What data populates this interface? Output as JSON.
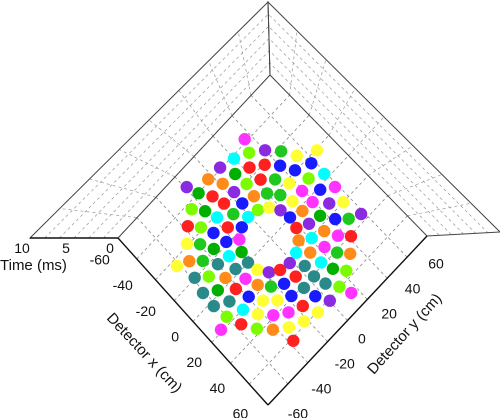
{
  "chart_data": {
    "type": "scatter",
    "subtype": "3d-scatter",
    "title": "",
    "x_axis": {
      "label": "Detector x (cm)",
      "ticks": [
        -60,
        -40,
        -20,
        0,
        20,
        40,
        60
      ],
      "range": [
        -65,
        65
      ]
    },
    "y_axis": {
      "label": "Detector y (cm)",
      "ticks": [
        -60,
        -40,
        -20,
        0,
        20,
        40,
        60
      ],
      "range": [
        -65,
        65
      ]
    },
    "z_axis": {
      "label": "Time (ms)",
      "ticks": [
        0,
        5,
        10
      ],
      "range": [
        0,
        10
      ]
    },
    "grid": true,
    "legend": "none",
    "view": "looking down the time axis; x runs toward the bottom-left, y toward the bottom-right",
    "palette": [
      "#ffff33",
      "#ff8c1a",
      "#ff2020",
      "#ff33ff",
      "#1a1aff",
      "#8a2be2",
      "#00ffff",
      "#2a8a8a",
      "#00b000",
      "#7cfc00",
      "#1ec81e"
    ],
    "point_cloud": {
      "description": "detector hit positions in a radially symmetric ring pattern around the centre; each point's color encodes time",
      "ring_radii_cm": [
        18,
        26,
        34,
        42,
        50,
        58
      ],
      "points_per_ring": [
        16,
        20,
        24,
        28,
        32,
        8
      ],
      "time_range_ms": [
        0,
        10
      ]
    }
  }
}
